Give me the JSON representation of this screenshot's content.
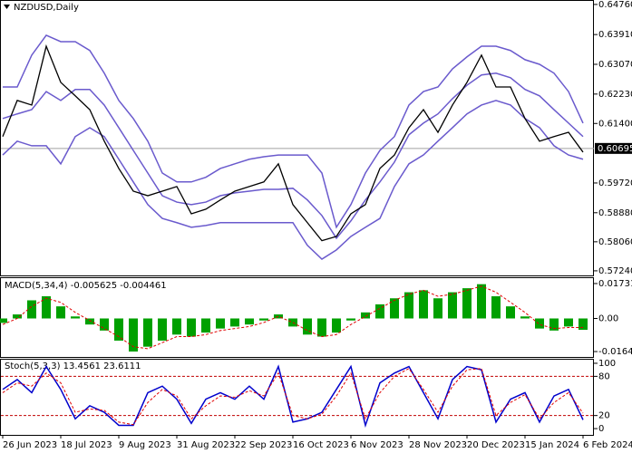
{
  "chart_data": [
    {
      "type": "line",
      "title": "NZDUSD,Daily",
      "ylim": [
        0.5711,
        0.6486
      ],
      "yticks": [
        {
          "value": 0.6476,
          "label": "0.64760"
        },
        {
          "value": 0.6391,
          "label": "0.63910"
        },
        {
          "value": 0.6307,
          "label": "0.63070"
        },
        {
          "value": 0.6223,
          "label": "0.62230"
        },
        {
          "value": 0.614,
          "label": "0.61400"
        },
        {
          "value": 0.5972,
          "label": "0.59720"
        },
        {
          "value": 0.5888,
          "label": "0.58880"
        },
        {
          "value": 0.5806,
          "label": "0.58060"
        },
        {
          "value": 0.5724,
          "label": "0.57240"
        }
      ],
      "current_price": 0.60695,
      "series": [
        {
          "name": "Upper band",
          "color": "#6a5acd",
          "values": [
            0.6243,
            0.6243,
            0.6333,
            0.6389,
            0.6371,
            0.6371,
            0.6346,
            0.6282,
            0.6205,
            0.6154,
            0.609,
            0.6,
            0.5975,
            0.5975,
            0.5988,
            0.6013,
            0.6026,
            0.6039,
            0.6046,
            0.6051,
            0.6051,
            0.6051,
            0.6,
            0.5847,
            0.5911,
            0.6,
            0.6064,
            0.6103,
            0.6192,
            0.623,
            0.6243,
            0.6294,
            0.6328,
            0.6358,
            0.6358,
            0.6346,
            0.632,
            0.6307,
            0.6282,
            0.623,
            0.6141
          ]
        },
        {
          "name": "Middle band",
          "color": "#6a5acd",
          "values": [
            0.6154,
            0.6167,
            0.6179,
            0.623,
            0.6205,
            0.6236,
            0.6236,
            0.6192,
            0.6128,
            0.6064,
            0.6,
            0.5936,
            0.5918,
            0.5911,
            0.5918,
            0.5936,
            0.5944,
            0.5949,
            0.5954,
            0.5954,
            0.5957,
            0.5924,
            0.588,
            0.5816,
            0.5865,
            0.5924,
            0.5975,
            0.6031,
            0.6108,
            0.6141,
            0.6167,
            0.621,
            0.6248,
            0.6277,
            0.6282,
            0.6269,
            0.6236,
            0.6218,
            0.6179,
            0.6141,
            0.6103
          ]
        },
        {
          "name": "Lower band",
          "color": "#6a5acd",
          "values": [
            0.6051,
            0.609,
            0.6077,
            0.6077,
            0.6026,
            0.6103,
            0.6128,
            0.6103,
            0.6039,
            0.5975,
            0.5911,
            0.5872,
            0.586,
            0.5847,
            0.5852,
            0.586,
            0.586,
            0.586,
            0.586,
            0.586,
            0.586,
            0.5796,
            0.5757,
            0.5783,
            0.5821,
            0.5847,
            0.5872,
            0.5962,
            0.6026,
            0.6051,
            0.609,
            0.6128,
            0.6167,
            0.6192,
            0.6205,
            0.6192,
            0.6154,
            0.6128,
            0.6077,
            0.6051,
            0.6039
          ]
        },
        {
          "name": "Close",
          "color": "#000000",
          "values": [
            0.6103,
            0.6205,
            0.6192,
            0.6358,
            0.6256,
            0.6218,
            0.6179,
            0.609,
            0.6013,
            0.5949,
            0.5936,
            0.5949,
            0.5962,
            0.5885,
            0.5898,
            0.5924,
            0.5949,
            0.5962,
            0.5975,
            0.6026,
            0.5911,
            0.586,
            0.5809,
            0.5821,
            0.5885,
            0.5911,
            0.6013,
            0.6051,
            0.6128,
            0.6179,
            0.6115,
            0.6192,
            0.6256,
            0.6333,
            0.6243,
            0.6243,
            0.6154,
            0.609,
            0.6103,
            0.6115,
            0.6059
          ]
        }
      ]
    },
    {
      "type": "bar",
      "title": "MACD(5,34,4) -0.005625 -0.004461",
      "ylim": [
        -0.0191,
        0.02
      ],
      "yticks": [
        0.017319,
        {
          "value": 0,
          "label": "0.00"
        },
        -0.016414
      ],
      "series": [
        {
          "name": "MACD",
          "color": "#00a000",
          "values": [
            -0.0022,
            0.002,
            0.009,
            0.011,
            0.006,
            0.001,
            -0.003,
            -0.006,
            -0.011,
            -0.0164,
            -0.014,
            -0.011,
            -0.008,
            -0.009,
            -0.007,
            -0.005,
            -0.004,
            -0.003,
            -0.001,
            0.002,
            -0.004,
            -0.008,
            -0.009,
            -0.007,
            -0.001,
            0.003,
            0.007,
            0.01,
            0.013,
            0.014,
            0.01,
            0.013,
            0.015,
            0.017,
            0.011,
            0.006,
            0.001,
            -0.005,
            -0.006,
            -0.004,
            -0.005625
          ]
        },
        {
          "name": "Signal",
          "color": "#e00000",
          "dashed": true,
          "values": [
            -0.003,
            0,
            0.006,
            0.01,
            0.008,
            0.003,
            -0.001,
            -0.005,
            -0.009,
            -0.014,
            -0.015,
            -0.012,
            -0.009,
            -0.009,
            -0.008,
            -0.006,
            -0.005,
            -0.004,
            -0.002,
            0.001,
            -0.002,
            -0.006,
            -0.009,
            -0.008,
            -0.003,
            0.001,
            0.005,
            0.009,
            0.012,
            0.014,
            0.011,
            0.012,
            0.014,
            0.016,
            0.013,
            0.008,
            0.003,
            -0.003,
            -0.005,
            -0.0045,
            -0.004461
          ]
        }
      ]
    },
    {
      "type": "line",
      "title": "Stoch(5,3,3) 13.4561 23.6111",
      "ylim": [
        -9.6,
        105.5
      ],
      "yticks": [
        100,
        80,
        20,
        0
      ],
      "levels": [
        80,
        20
      ],
      "categories": [
        "26 Jun 2023",
        null,
        null,
        null,
        "18 Jul 2023",
        null,
        null,
        null,
        "9 Aug 2023",
        null,
        null,
        null,
        "31 Aug 2023",
        null,
        null,
        null,
        "22 Sep 2023",
        null,
        null,
        null,
        "16 Oct 2023",
        null,
        null,
        null,
        "6 Nov 2023",
        null,
        null,
        null,
        "28 Nov 2023",
        null,
        null,
        null,
        "20 Dec 2023",
        null,
        null,
        null,
        "15 Jan 2024",
        null,
        null,
        null,
        "6 Feb 2024"
      ],
      "series": [
        {
          "name": "%K",
          "color": "#0000cc",
          "values": [
            60,
            75,
            55,
            95,
            60,
            15,
            35,
            25,
            5,
            5,
            55,
            65,
            45,
            8,
            45,
            55,
            45,
            65,
            45,
            95,
            10,
            15,
            25,
            60,
            95,
            5,
            70,
            85,
            95,
            55,
            15,
            75,
            95,
            90,
            10,
            45,
            55,
            10,
            50,
            60,
            13.4561
          ]
        },
        {
          "name": "%D",
          "color": "#e00000",
          "dashed": true,
          "values": [
            55,
            70,
            65,
            85,
            70,
            25,
            30,
            28,
            10,
            6,
            40,
            60,
            50,
            15,
            35,
            50,
            48,
            58,
            50,
            85,
            20,
            15,
            22,
            50,
            85,
            15,
            55,
            80,
            92,
            60,
            25,
            65,
            90,
            92,
            20,
            40,
            52,
            15,
            40,
            55,
            23.6111
          ]
        }
      ]
    }
  ]
}
